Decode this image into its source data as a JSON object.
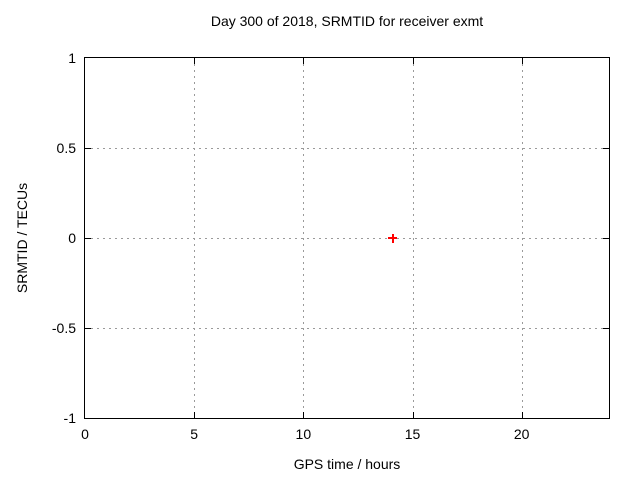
{
  "chart_data": {
    "type": "scatter",
    "title": "Day 300 of 2018, SRMTID for receiver exmt",
    "xlabel": "GPS time / hours",
    "ylabel": "SRMTID / TECUs",
    "xlim": [
      0,
      24
    ],
    "ylim": [
      -1,
      1
    ],
    "xticks": [
      0,
      5,
      10,
      15,
      20
    ],
    "xtick_labels": [
      "0",
      "5",
      "10",
      "15",
      "20"
    ],
    "yticks": [
      1,
      0.5,
      0,
      -0.5,
      -1
    ],
    "ytick_labels": [
      "1",
      "0.5",
      "0",
      "-0.5",
      "-1"
    ],
    "grid": true,
    "grid_color": "#9a9a9a",
    "axis_color": "#000000",
    "background": "#ffffff",
    "legend": null,
    "series": [
      {
        "marker": "plus",
        "color": "#ff0000",
        "points": [
          {
            "x": 14.1,
            "y": 0.0
          }
        ]
      }
    ]
  }
}
